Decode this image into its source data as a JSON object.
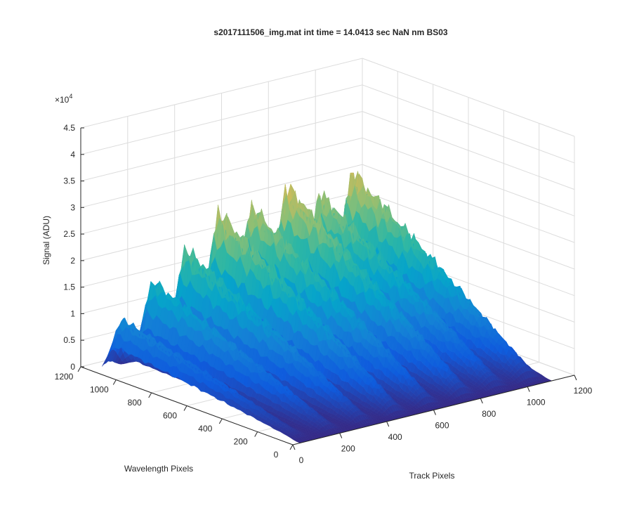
{
  "chart_data": {
    "type": "surface3d",
    "title": "s2017111506_img.mat int time = 14.0413 sec  NaN nm BS03",
    "xlabel": "Track Pixels",
    "ylabel": "Wavelength Pixels",
    "zlabel": "Signal (ADU)",
    "z_multiplier": "×10",
    "z_multiplier_exp": "4",
    "xlim": [
      0,
      1200
    ],
    "ylim": [
      0,
      1200
    ],
    "zlim": [
      0,
      45000
    ],
    "x_ticks": [
      "0",
      "200",
      "400",
      "600",
      "800",
      "1000",
      "1200"
    ],
    "y_ticks": [
      "0",
      "200",
      "400",
      "600",
      "800",
      "1000",
      "1200"
    ],
    "z_ticks": [
      "0",
      "0.5",
      "1",
      "1.5",
      "2",
      "2.5",
      "3",
      "3.5",
      "4",
      "4.5"
    ],
    "grid": true,
    "colormap": "parula",
    "colormap_colors": [
      "#352a87",
      "#0f5cdd",
      "#1481d6",
      "#06a4ca",
      "#2eb7a4",
      "#87bf77",
      "#d1bb59",
      "#fec832",
      "#f9fb0e"
    ],
    "tracks": [
      {
        "x_center": 60,
        "peak": 12500
      },
      {
        "x_center": 190,
        "peak": 19500
      },
      {
        "x_center": 330,
        "peak": 25000
      },
      {
        "x_center": 470,
        "peak": 31500
      },
      {
        "x_center": 610,
        "peak": 31000
      },
      {
        "x_center": 760,
        "peak": 33500
      },
      {
        "x_center": 900,
        "peak": 30000
      },
      {
        "x_center": 1040,
        "peak": 33000
      }
    ]
  }
}
